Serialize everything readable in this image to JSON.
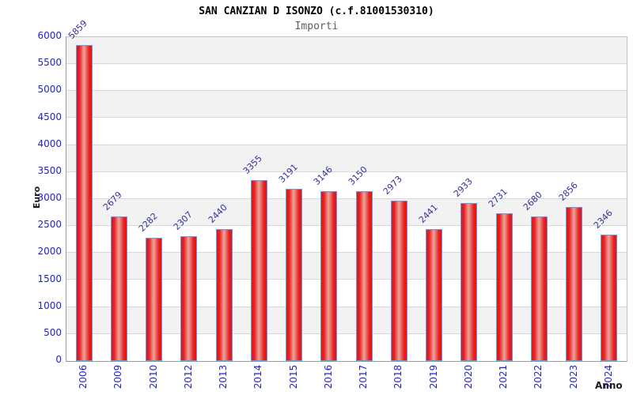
{
  "header": {
    "title": "SAN CANZIAN D ISONZO (c.f.81001530310)",
    "subtitle": "Importi"
  },
  "chart_data": {
    "type": "bar",
    "title": "SAN CANZIAN D ISONZO (c.f.81001530310)",
    "subtitle": "Importi",
    "xlabel": "Anno",
    "ylabel": "Euro",
    "categories": [
      "2006",
      "2009",
      "2010",
      "2012",
      "2013",
      "2014",
      "2015",
      "2016",
      "2017",
      "2018",
      "2019",
      "2020",
      "2021",
      "2022",
      "2023",
      "2024"
    ],
    "values": [
      5859,
      2679,
      2282,
      2307,
      2440,
      3355,
      3191,
      3146,
      3150,
      2973,
      2441,
      2933,
      2731,
      2680,
      2856,
      2346
    ],
    "ylim": [
      0,
      6000
    ],
    "ytick_step": 500,
    "grid": true,
    "legend_position": "none",
    "alternating_bands": true,
    "colors": {
      "bar_edge": "#55a0f0",
      "bar_main": "#e51414",
      "bar_highlight": "#eba59c",
      "tick_label": "#2323cb",
      "value_label": "#32329e",
      "band_gray": "#f2f2f2",
      "band_white": "#ffffff",
      "grid_line": "#d8d8d8",
      "axis_title": "#1a1a1a",
      "title": "#000000",
      "subtitle": "#5f5f5f"
    }
  }
}
